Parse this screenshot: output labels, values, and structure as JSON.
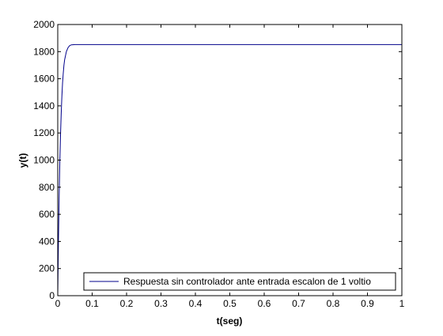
{
  "chart_data": {
    "type": "line",
    "title": "",
    "xlabel": "t(seg)",
    "ylabel": "y(t)",
    "xlim": [
      0,
      1
    ],
    "ylim": [
      0,
      2000
    ],
    "xticks": [
      0,
      0.1,
      0.2,
      0.3,
      0.4,
      0.5,
      0.6,
      0.7,
      0.8,
      0.9,
      1
    ],
    "xtick_labels": [
      "0",
      "0.1",
      "0.2",
      "0.3",
      "0.4",
      "0.5",
      "0.6",
      "0.7",
      "0.8",
      "0.9",
      "1"
    ],
    "yticks": [
      0,
      200,
      400,
      600,
      800,
      1000,
      1200,
      1400,
      1600,
      1800,
      2000
    ],
    "ytick_labels": [
      "0",
      "200",
      "400",
      "600",
      "800",
      "1000",
      "1200",
      "1400",
      "1600",
      "1800",
      "2000"
    ],
    "grid": false,
    "legend_position": "bottom-right",
    "series": [
      {
        "name": "Respuesta sin controlador ante entrada escalon de 1 voltio",
        "color": "#00008b",
        "x": [
          0,
          0.002,
          0.004,
          0.006,
          0.008,
          0.01,
          0.012,
          0.014,
          0.016,
          0.018,
          0.02,
          0.025,
          0.03,
          0.035,
          0.04,
          0.05,
          0.06,
          0.08,
          0.1,
          0.2,
          0.3,
          0.4,
          0.5,
          0.6,
          0.7,
          0.8,
          0.9,
          1.0
        ],
        "y": [
          0,
          400,
          720,
          980,
          1180,
          1340,
          1470,
          1570,
          1640,
          1700,
          1740,
          1800,
          1830,
          1845,
          1850,
          1852,
          1852,
          1852,
          1852,
          1852,
          1852,
          1852,
          1852,
          1852,
          1852,
          1852,
          1852,
          1852
        ]
      }
    ]
  }
}
